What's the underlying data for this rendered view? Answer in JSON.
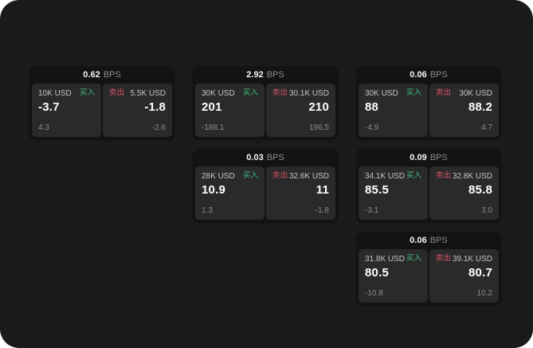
{
  "labels": {
    "buy": "买入",
    "sell": "卖出",
    "bps_unit": "BPS"
  },
  "colors": {
    "buy_green": "#3fbe7c",
    "sell_red": "#d95467",
    "screen_bg": "#1b1b1c",
    "card_bg": "#131314",
    "panel_bg": "#2a2a2b"
  },
  "cards": [
    {
      "row": 1,
      "col": 1,
      "bps": "0.62",
      "buy": {
        "amount": "10K USD",
        "value": "-3.7",
        "delta": "4.3"
      },
      "sell": {
        "amount": "5.5K USD",
        "value": "-1.8",
        "delta": "-2.6"
      }
    },
    {
      "row": 1,
      "col": 2,
      "bps": "2.92",
      "buy": {
        "amount": "30K USD",
        "value": "201",
        "delta": "-188.1"
      },
      "sell": {
        "amount": "30.1K USD",
        "value": "210",
        "delta": "196.5"
      }
    },
    {
      "row": 1,
      "col": 3,
      "bps": "0.06",
      "buy": {
        "amount": "30K USD",
        "value": "88",
        "delta": "-4.9"
      },
      "sell": {
        "amount": "30K USD",
        "value": "88.2",
        "delta": "4.7"
      }
    },
    {
      "row": 2,
      "col": 2,
      "bps": "0.03",
      "buy": {
        "amount": "28K USD",
        "value": "10.9",
        "delta": "1.3"
      },
      "sell": {
        "amount": "32.6K USD",
        "value": "11",
        "delta": "-1.8"
      }
    },
    {
      "row": 2,
      "col": 3,
      "bps": "0.09",
      "buy": {
        "amount": "34.1K USD",
        "value": "85.5",
        "delta": "-3.1"
      },
      "sell": {
        "amount": "32.8K USD",
        "value": "85.8",
        "delta": "3.0"
      }
    },
    {
      "row": 3,
      "col": 3,
      "bps": "0.06",
      "buy": {
        "amount": "31.8K USD",
        "value": "80.5",
        "delta": "-10.8"
      },
      "sell": {
        "amount": "39.1K USD",
        "value": "80.7",
        "delta": "10.2"
      }
    }
  ]
}
